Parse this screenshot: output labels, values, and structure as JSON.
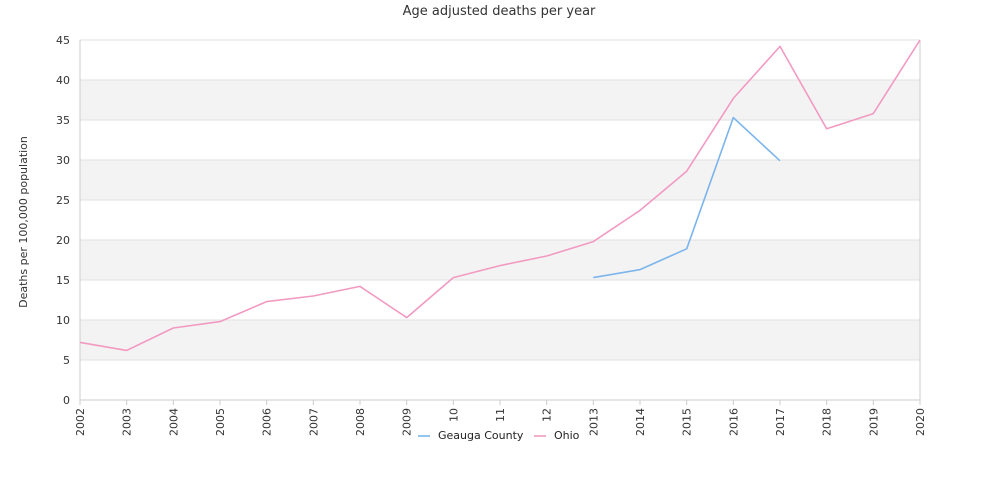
{
  "chart_data": {
    "type": "line",
    "title": "Age adjusted deaths per year",
    "xlabel": "",
    "ylabel": "Deaths per 100,000 population",
    "categories": [
      "2002",
      "2003",
      "2004",
      "2005",
      "2006",
      "2007",
      "2008",
      "2009",
      "10",
      "11",
      "12",
      "2013",
      "2014",
      "2015",
      "2016",
      "2017",
      "2018",
      "2019",
      "2020"
    ],
    "ylim": [
      0,
      45
    ],
    "yticks": [
      0,
      5,
      10,
      15,
      20,
      25,
      30,
      35,
      40,
      45
    ],
    "grid": "horizontal alternating bands",
    "legend_position": "bottom",
    "series": [
      {
        "name": "Geauga County",
        "color": "#7cb5ec",
        "values": [
          null,
          null,
          null,
          null,
          null,
          null,
          null,
          null,
          null,
          null,
          null,
          15.3,
          16.3,
          18.9,
          35.3,
          29.9,
          null,
          null,
          null
        ]
      },
      {
        "name": "Ohio",
        "color": "#f29ac2",
        "values": [
          7.2,
          6.2,
          9.0,
          9.8,
          12.3,
          13.0,
          14.2,
          10.3,
          15.3,
          16.8,
          18.0,
          19.8,
          23.7,
          28.6,
          37.7,
          44.2,
          33.9,
          35.8,
          45.0
        ]
      }
    ]
  }
}
